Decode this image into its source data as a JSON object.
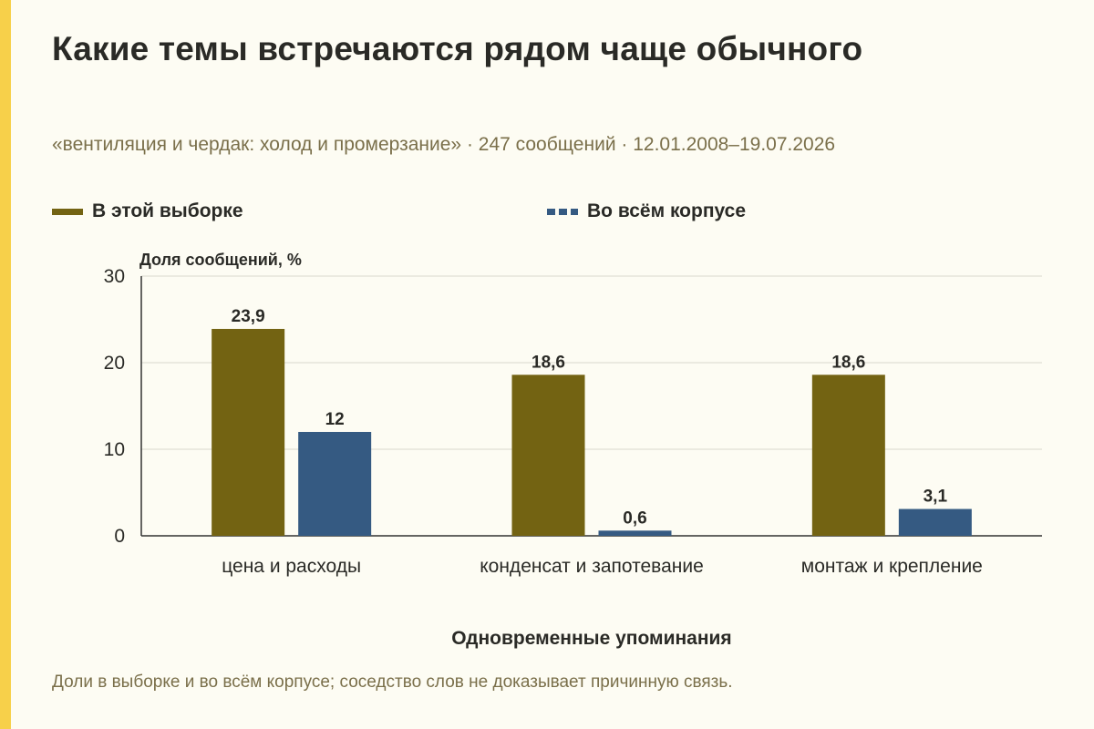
{
  "title": "Какие темы встречаются рядом чаще обычного",
  "subtitle": "«вентиляция и чердак: холод и промерзание» · 247 сообщений · 12.01.2008–19.07.2026",
  "footnote": "Доли в выборке и во всём корпусе; соседство слов не доказывает причинную связь.",
  "colors": {
    "sample": "#736312",
    "corpus": "#355a82",
    "accent": "#f7d04a",
    "grid": "#d9d7cc"
  },
  "chart_data": {
    "type": "bar",
    "title": "Какие темы встречаются рядом чаще обычного",
    "ylabel": "Доля сообщений, %",
    "xlabel": "Одновременные упоминания",
    "ylim": [
      0,
      30
    ],
    "yticks": [
      0,
      10,
      20,
      30
    ],
    "grid": true,
    "legend_position": "top-left",
    "categories": [
      "цена и расходы",
      "конденсат и запотевание",
      "монтаж и крепление"
    ],
    "series": [
      {
        "name": "В этой выборке",
        "values": [
          23.9,
          18.6,
          18.6
        ],
        "labels": [
          "23,9",
          "18,6",
          "18,6"
        ]
      },
      {
        "name": "Во всём корпусе",
        "values": [
          12,
          0.6,
          3.1
        ],
        "labels": [
          "12",
          "0,6",
          "3,1"
        ]
      }
    ]
  }
}
